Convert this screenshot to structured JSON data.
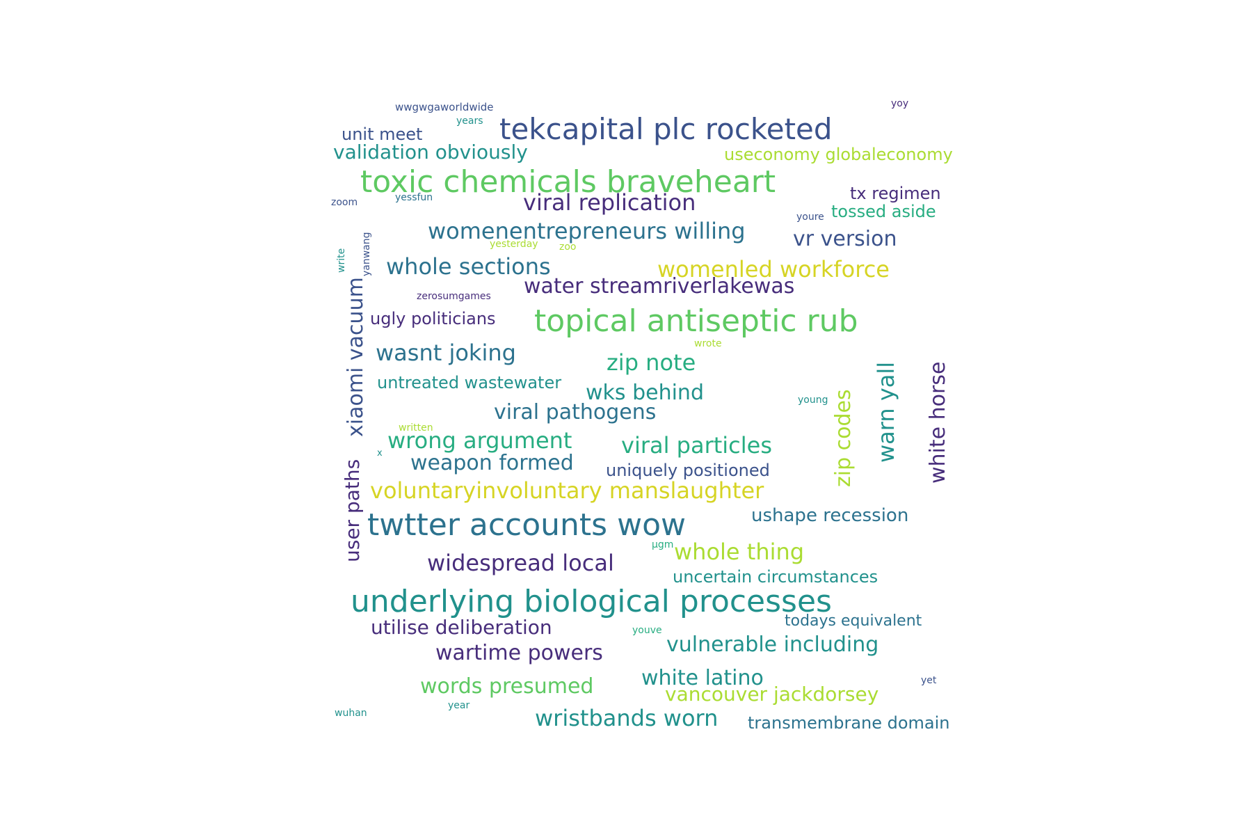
{
  "colors": {
    "dark_purple": "#472d7b",
    "indigo": "#3b528b",
    "slate_blue": "#2c728e",
    "teal": "#21918c",
    "green": "#27ad81",
    "light_green": "#5ec962",
    "lime": "#aadc32",
    "yellow": "#d6d424"
  },
  "words": [
    {
      "text": "tekcapital plc rocketed",
      "color": "#3b528b",
      "vertical": false
    },
    {
      "text": "toxic chemicals braveheart",
      "color": "#5ec962",
      "vertical": false
    },
    {
      "text": "topical antiseptic rub",
      "color": "#5ec962",
      "vertical": false
    },
    {
      "text": "twtter accounts wow",
      "color": "#2c728e",
      "vertical": false
    },
    {
      "text": "underlying biological processes",
      "color": "#21918c",
      "vertical": false
    },
    {
      "text": "unit meet",
      "color": "#3b528b",
      "vertical": false
    },
    {
      "text": "validation obviously",
      "color": "#21918c",
      "vertical": false
    },
    {
      "text": "useconomy globaleconomy",
      "color": "#aadc32",
      "vertical": false
    },
    {
      "text": "viral replication",
      "color": "#472d7b",
      "vertical": false
    },
    {
      "text": "tx regimen",
      "color": "#472d7b",
      "vertical": false
    },
    {
      "text": "tossed aside",
      "color": "#27ad81",
      "vertical": false
    },
    {
      "text": "womenentrepreneurs willing",
      "color": "#2c728e",
      "vertical": false
    },
    {
      "text": "vr version",
      "color": "#3b528b",
      "vertical": false
    },
    {
      "text": "whole sections",
      "color": "#2c728e",
      "vertical": false
    },
    {
      "text": "womenled workforce",
      "color": "#d6d424",
      "vertical": false
    },
    {
      "text": "water streamriverlakewas",
      "color": "#472d7b",
      "vertical": false
    },
    {
      "text": "ugly politicians",
      "color": "#472d7b",
      "vertical": false
    },
    {
      "text": "wasnt joking",
      "color": "#2c728e",
      "vertical": false
    },
    {
      "text": "zip note",
      "color": "#27ad81",
      "vertical": false
    },
    {
      "text": "untreated wastewater",
      "color": "#21918c",
      "vertical": false
    },
    {
      "text": "wks behind",
      "color": "#21918c",
      "vertical": false
    },
    {
      "text": "viral pathogens",
      "color": "#2c728e",
      "vertical": false
    },
    {
      "text": "wrong argument",
      "color": "#27ad81",
      "vertical": false
    },
    {
      "text": "viral particles",
      "color": "#27ad81",
      "vertical": false
    },
    {
      "text": "weapon formed",
      "color": "#2c728e",
      "vertical": false
    },
    {
      "text": "uniquely positioned",
      "color": "#3b528b",
      "vertical": false
    },
    {
      "text": "voluntaryinvoluntary manslaughter",
      "color": "#d6d424",
      "vertical": false
    },
    {
      "text": "ushape recession",
      "color": "#2c728e",
      "vertical": false
    },
    {
      "text": "whole thing",
      "color": "#aadc32",
      "vertical": false
    },
    {
      "text": "widespread local",
      "color": "#472d7b",
      "vertical": false
    },
    {
      "text": "uncertain circumstances",
      "color": "#21918c",
      "vertical": false
    },
    {
      "text": "todays equivalent",
      "color": "#2c728e",
      "vertical": false
    },
    {
      "text": "utilise deliberation",
      "color": "#472d7b",
      "vertical": false
    },
    {
      "text": "vulnerable including",
      "color": "#21918c",
      "vertical": false
    },
    {
      "text": "wartime powers",
      "color": "#472d7b",
      "vertical": false
    },
    {
      "text": "white latino",
      "color": "#21918c",
      "vertical": false
    },
    {
      "text": "words presumed",
      "color": "#5ec962",
      "vertical": false
    },
    {
      "text": "vancouver jackdorsey",
      "color": "#aadc32",
      "vertical": false
    },
    {
      "text": "wristbands worn",
      "color": "#21918c",
      "vertical": false
    },
    {
      "text": "transmembrane domain",
      "color": "#2c728e",
      "vertical": false
    },
    {
      "text": "xiaomi vacuum",
      "color": "#3b528b",
      "vertical": true
    },
    {
      "text": "user paths",
      "color": "#472d7b",
      "vertical": true
    },
    {
      "text": "zip codes",
      "color": "#aadc32",
      "vertical": true
    },
    {
      "text": "warn yall",
      "color": "#21918c",
      "vertical": true
    },
    {
      "text": "white horse",
      "color": "#472d7b",
      "vertical": true
    },
    {
      "text": "write",
      "color": "#21918c",
      "vertical": true
    },
    {
      "text": "yanwang",
      "color": "#3b528b",
      "vertical": true
    },
    {
      "text": "wwgwgaworldwide",
      "color": "#3b528b",
      "vertical": false
    },
    {
      "text": "years",
      "color": "#21918c",
      "vertical": false
    },
    {
      "text": "yoy",
      "color": "#472d7b",
      "vertical": false
    },
    {
      "text": "zoom",
      "color": "#3b528b",
      "vertical": false
    },
    {
      "text": "yessfun",
      "color": "#2c728e",
      "vertical": false
    },
    {
      "text": "youre",
      "color": "#3b528b",
      "vertical": false
    },
    {
      "text": "yesterday",
      "color": "#aadc32",
      "vertical": false
    },
    {
      "text": "zoo",
      "color": "#aadc32",
      "vertical": false
    },
    {
      "text": "zerosumgames",
      "color": "#472d7b",
      "vertical": false
    },
    {
      "text": "wrote",
      "color": "#aadc32",
      "vertical": false
    },
    {
      "text": "young",
      "color": "#21918c",
      "vertical": false
    },
    {
      "text": "written",
      "color": "#aadc32",
      "vertical": false
    },
    {
      "text": "x",
      "color": "#21918c",
      "vertical": false
    },
    {
      "text": "μgm",
      "color": "#27ad81",
      "vertical": false
    },
    {
      "text": "youve",
      "color": "#27ad81",
      "vertical": false
    },
    {
      "text": "yet",
      "color": "#3b528b",
      "vertical": false
    },
    {
      "text": "year",
      "color": "#21918c",
      "vertical": false
    },
    {
      "text": "wuhan",
      "color": "#21918c",
      "vertical": false
    }
  ]
}
